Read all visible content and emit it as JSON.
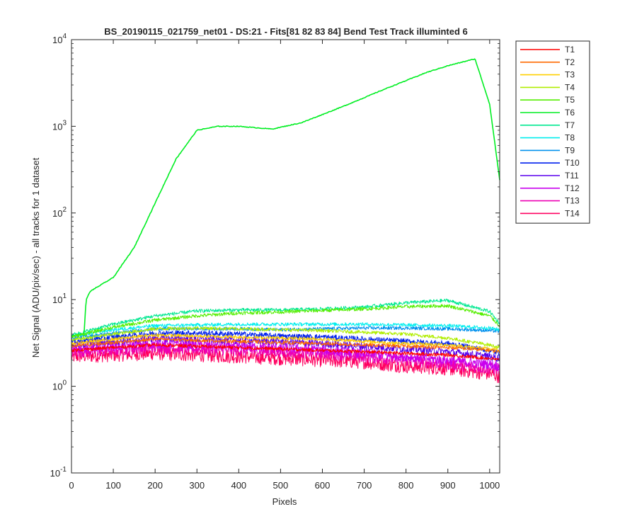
{
  "chart_data": {
    "type": "line",
    "title": "BS_20190115_021759_net01 - DS:21 - Fits[81  82  83  84]   Bend Test        Track illuminted 6",
    "xlabel": "Pixels",
    "ylabel": "Net Signal (ADU/pix/sec) - all tracks for 1 dataset",
    "xlim": [
      0,
      1024
    ],
    "ylim": [
      0.1,
      10000
    ],
    "yscale": "log",
    "xticks": [
      0,
      100,
      200,
      300,
      400,
      500,
      600,
      700,
      800,
      900,
      1000
    ],
    "yticks": [
      {
        "base": "10",
        "exp": "-1",
        "value": 0.1
      },
      {
        "base": "10",
        "exp": "0",
        "value": 1
      },
      {
        "base": "10",
        "exp": "1",
        "value": 10
      },
      {
        "base": "10",
        "exp": "2",
        "value": 100
      },
      {
        "base": "10",
        "exp": "3",
        "value": 1000
      },
      {
        "base": "10",
        "exp": "4",
        "value": 10000
      }
    ],
    "legend_position": "outside-right-top",
    "grid": false,
    "series": [
      {
        "name": "T1",
        "color": "#ff0000",
        "x": [
          0,
          100,
          200,
          300,
          400,
          500,
          600,
          700,
          800,
          900,
          1000,
          1024
        ],
        "y": [
          2.6,
          2.8,
          3.0,
          2.9,
          2.8,
          2.7,
          2.6,
          2.5,
          2.4,
          2.3,
          2.1,
          2.0
        ]
      },
      {
        "name": "T2",
        "color": "#ff6a00",
        "x": [
          0,
          100,
          200,
          300,
          400,
          500,
          600,
          700,
          800,
          900,
          1000,
          1024
        ],
        "y": [
          2.9,
          3.2,
          3.5,
          3.4,
          3.3,
          3.2,
          3.1,
          3.0,
          2.9,
          2.8,
          2.6,
          2.5
        ]
      },
      {
        "name": "T3",
        "color": "#ffd000",
        "x": [
          0,
          100,
          200,
          300,
          400,
          500,
          600,
          700,
          800,
          900,
          1000,
          1024
        ],
        "y": [
          3.1,
          3.5,
          3.9,
          3.8,
          3.7,
          3.6,
          3.5,
          3.3,
          3.1,
          3.0,
          2.7,
          2.6
        ]
      },
      {
        "name": "T4",
        "color": "#b0ee00",
        "x": [
          0,
          100,
          200,
          300,
          400,
          500,
          600,
          700,
          800,
          900,
          1000,
          1024
        ],
        "y": [
          3.4,
          4.0,
          4.6,
          4.7,
          4.6,
          4.5,
          4.4,
          4.2,
          4.0,
          3.6,
          3.0,
          2.8
        ]
      },
      {
        "name": "T5",
        "color": "#55ee00",
        "x": [
          0,
          100,
          200,
          300,
          400,
          500,
          600,
          700,
          800,
          900,
          1000,
          1024
        ],
        "y": [
          3.7,
          4.8,
          5.8,
          6.5,
          7.0,
          7.2,
          7.5,
          7.8,
          8.3,
          8.5,
          6.5,
          5.0
        ]
      },
      {
        "name": "T6",
        "color": "#00ee22",
        "x": [
          0,
          30,
          35,
          45,
          100,
          150,
          200,
          250,
          300,
          350,
          400,
          480,
          550,
          650,
          750,
          850,
          900,
          965,
          1000,
          1024
        ],
        "y": [
          3.8,
          4.0,
          10,
          12.5,
          18,
          40,
          130,
          420,
          900,
          1000,
          1000,
          930,
          1100,
          1700,
          2700,
          4200,
          5000,
          6000,
          1800,
          240
        ]
      },
      {
        "name": "T7",
        "color": "#00e890",
        "x": [
          0,
          100,
          200,
          300,
          400,
          500,
          600,
          700,
          800,
          900,
          1000,
          1024
        ],
        "y": [
          3.9,
          5.2,
          6.5,
          7.4,
          7.6,
          7.6,
          7.8,
          8.2,
          9.2,
          9.8,
          7.3,
          5.3
        ]
      },
      {
        "name": "T8",
        "color": "#00eeee",
        "x": [
          0,
          100,
          200,
          300,
          400,
          500,
          600,
          700,
          800,
          900,
          1000,
          1024
        ],
        "y": [
          3.8,
          4.5,
          5.0,
          5.1,
          5.2,
          5.2,
          5.2,
          5.2,
          5.1,
          5.0,
          4.7,
          4.5
        ]
      },
      {
        "name": "T9",
        "color": "#0090ee",
        "x": [
          0,
          100,
          200,
          300,
          400,
          500,
          600,
          700,
          800,
          900,
          1000,
          1024
        ],
        "y": [
          3.6,
          4.1,
          4.6,
          4.6,
          4.6,
          4.5,
          4.6,
          4.7,
          4.7,
          4.6,
          4.4,
          4.3
        ]
      },
      {
        "name": "T10",
        "color": "#0020ee",
        "x": [
          0,
          100,
          200,
          300,
          400,
          500,
          600,
          700,
          800,
          900,
          1000,
          1024
        ],
        "y": [
          3.3,
          3.7,
          4.1,
          4.1,
          4.0,
          3.8,
          3.7,
          3.5,
          3.3,
          3.1,
          2.6,
          2.4
        ]
      },
      {
        "name": "T11",
        "color": "#5a00ee",
        "x": [
          0,
          100,
          200,
          300,
          400,
          500,
          600,
          700,
          800,
          900,
          1000,
          1024
        ],
        "y": [
          3.0,
          3.3,
          3.6,
          3.5,
          3.4,
          3.3,
          3.1,
          2.9,
          2.7,
          2.5,
          2.2,
          2.1
        ]
      },
      {
        "name": "T12",
        "color": "#c800ee",
        "x": [
          0,
          100,
          200,
          300,
          400,
          500,
          600,
          700,
          800,
          900,
          1000,
          1024
        ],
        "y": [
          2.7,
          2.9,
          3.1,
          3.0,
          2.9,
          2.8,
          2.6,
          2.4,
          2.2,
          2.0,
          1.8,
          1.7
        ]
      },
      {
        "name": "T13",
        "color": "#ee00b4",
        "x": [
          0,
          100,
          200,
          300,
          400,
          500,
          600,
          700,
          800,
          900,
          1000,
          1024
        ],
        "y": [
          2.5,
          2.6,
          2.8,
          2.7,
          2.6,
          2.5,
          2.4,
          2.2,
          2.0,
          1.8,
          1.6,
          1.6
        ]
      },
      {
        "name": "T14",
        "color": "#ff0060",
        "x": [
          0,
          100,
          200,
          300,
          400,
          500,
          600,
          700,
          800,
          900,
          1000,
          1024
        ],
        "y": [
          2.2,
          2.3,
          2.4,
          2.3,
          2.2,
          2.1,
          2.0,
          1.9,
          1.7,
          1.6,
          1.4,
          1.3
        ]
      }
    ]
  }
}
